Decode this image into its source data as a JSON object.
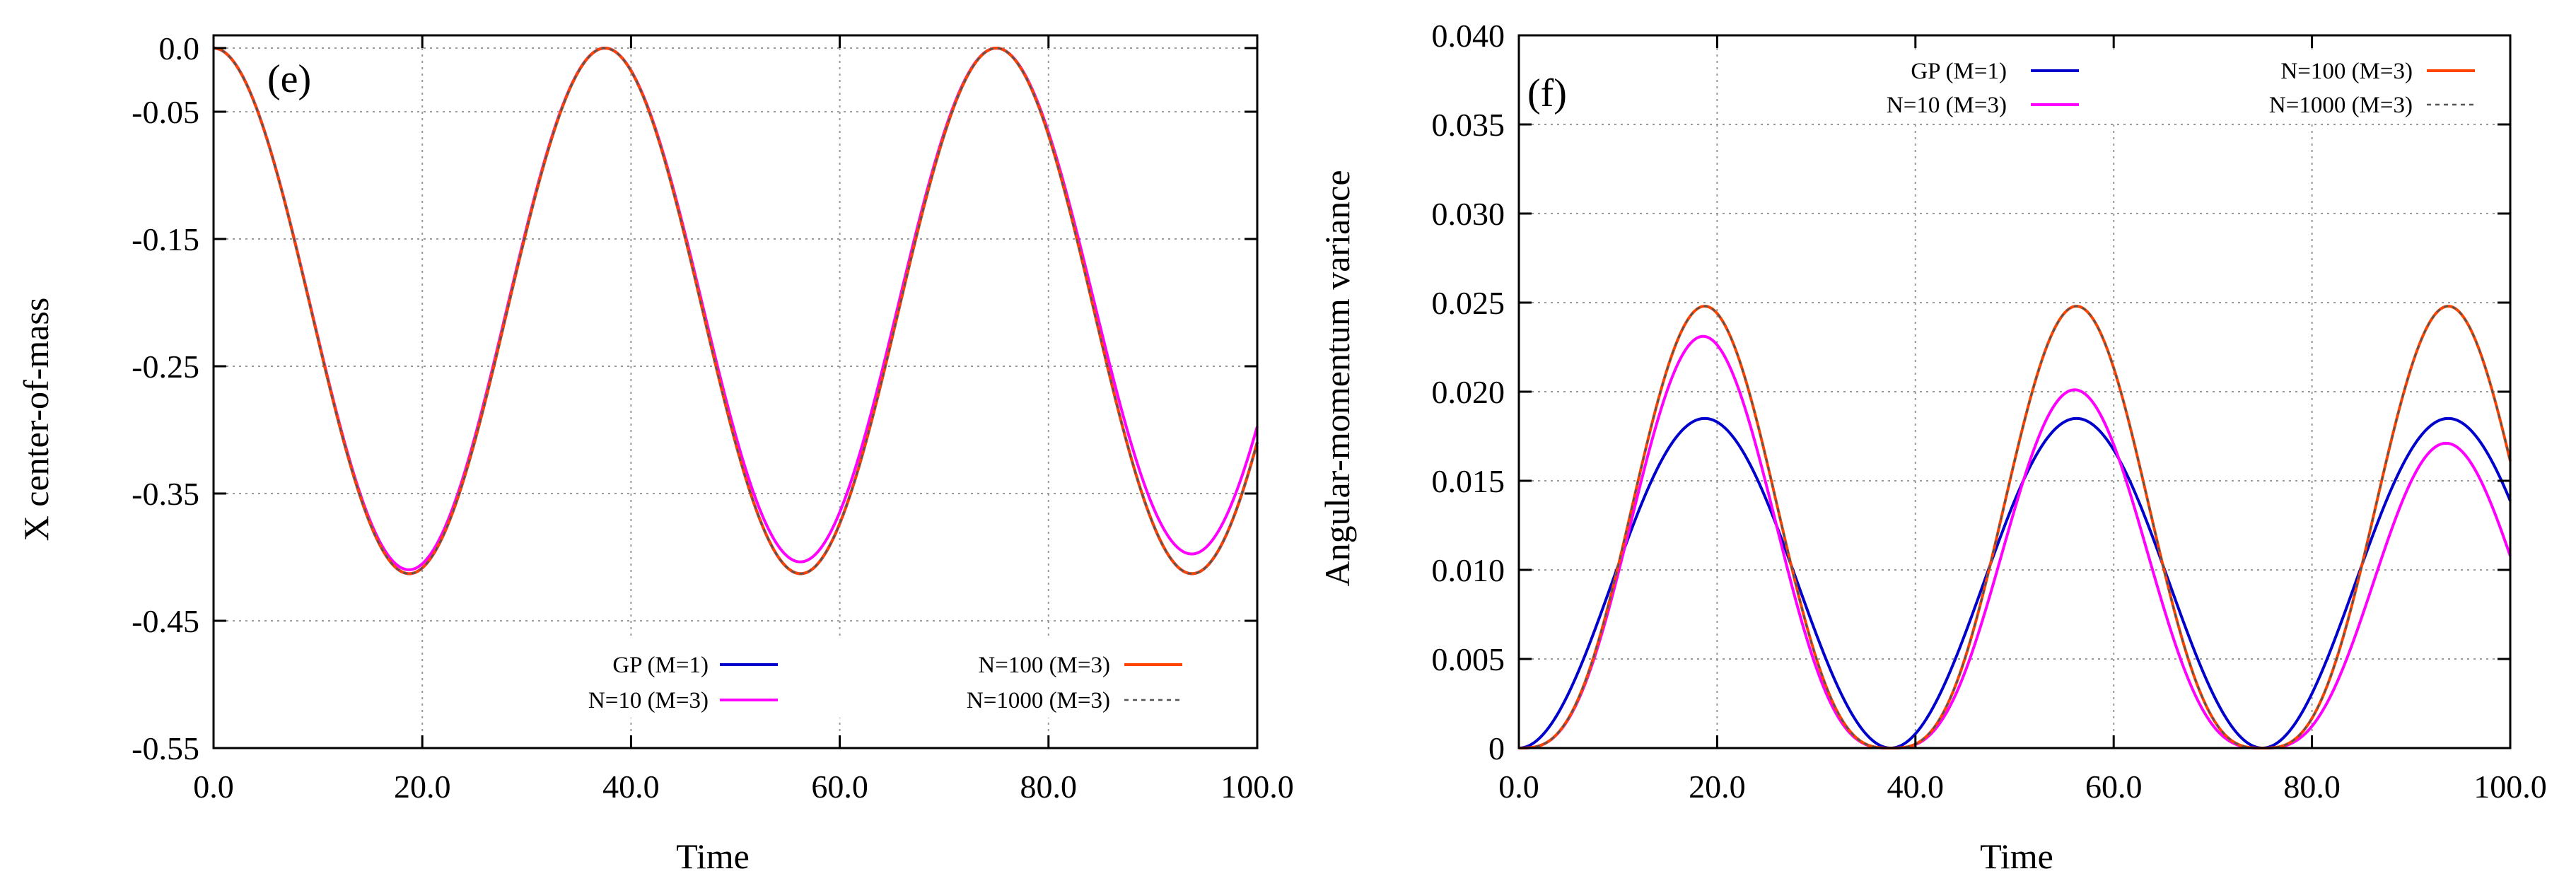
{
  "chart_data": [
    {
      "type": "line",
      "panel_label": "(e)",
      "xlabel": "Time",
      "ylabel": "X center-of-mass",
      "xlim": [
        0,
        100
      ],
      "ylim": [
        -0.55,
        0.01
      ],
      "xticks": [
        0,
        20,
        40,
        60,
        80,
        100
      ],
      "xtick_labels": [
        "0.0",
        "20.0",
        "40.0",
        "60.0",
        "80.0",
        "100.0"
      ],
      "yticks": [
        0.0,
        -0.05,
        -0.15,
        -0.25,
        -0.35,
        -0.45,
        -0.55
      ],
      "ytick_labels": [
        "0.0",
        "-0.05",
        "-0.15",
        "-0.25",
        "-0.35",
        "-0.45",
        "-0.55"
      ],
      "grid": true,
      "legend_position": "bottom-right",
      "model": {
        "kind": "cos",
        "amplitude": 0.2065,
        "offset": -0.2065,
        "period": 37.5
      },
      "series": [
        {
          "name": "GP (M=1)",
          "color": "#0000cc",
          "style": "solid",
          "amp_scale": 1.0,
          "amp_slope": 0.0,
          "phase_shift": 0.0
        },
        {
          "name": "N=10 (M=3)",
          "color": "#ff00ff",
          "style": "solid",
          "amp_scale": 1.0,
          "amp_slope": -0.0004,
          "phase_shift": 0.0
        },
        {
          "name": "N=100 (M=3)",
          "color": "#ff4400",
          "style": "solid",
          "amp_scale": 1.0,
          "amp_slope": 0.0,
          "phase_shift": 0.0
        },
        {
          "name": "N=1000 (M=3)",
          "color": "#555555",
          "style": "dashed",
          "amp_scale": 1.0,
          "amp_slope": 0.0,
          "phase_shift": 0.0
        }
      ]
    },
    {
      "type": "line",
      "panel_label": "(f)",
      "xlabel": "Time",
      "ylabel": "Angular-momentum variance",
      "xlim": [
        0,
        100
      ],
      "ylim": [
        0,
        0.04
      ],
      "xticks": [
        0,
        20,
        40,
        60,
        80,
        100
      ],
      "xtick_labels": [
        "0.0",
        "20.0",
        "40.0",
        "60.0",
        "80.0",
        "100.0"
      ],
      "yticks": [
        0,
        0.005,
        0.01,
        0.015,
        0.02,
        0.025,
        0.03,
        0.035,
        0.04
      ],
      "ytick_labels": [
        "0",
        "0.005",
        "0.010",
        "0.015",
        "0.020",
        "0.025",
        "0.030",
        "0.035",
        "0.040"
      ],
      "grid": true,
      "legend_position": "top",
      "model": {
        "kind": "sin2",
        "period": 37.5
      },
      "series": [
        {
          "name": "GP (M=1)",
          "color": "#0000cc",
          "style": "solid",
          "peak": 0.0185,
          "power": 1.0,
          "peak_slope": 0.0
        },
        {
          "name": "N=10 (M=3)",
          "color": "#ff00ff",
          "style": "solid",
          "peak": 0.0246,
          "power": 1.5,
          "peak_slope": -8e-05
        },
        {
          "name": "N=100 (M=3)",
          "color": "#ff4400",
          "style": "solid",
          "peak": 0.0248,
          "power": 1.5,
          "peak_slope": 0.0
        },
        {
          "name": "N=1000 (M=3)",
          "color": "#555555",
          "style": "dashed",
          "peak": 0.0248,
          "power": 1.5,
          "peak_slope": 0.0
        }
      ]
    }
  ]
}
